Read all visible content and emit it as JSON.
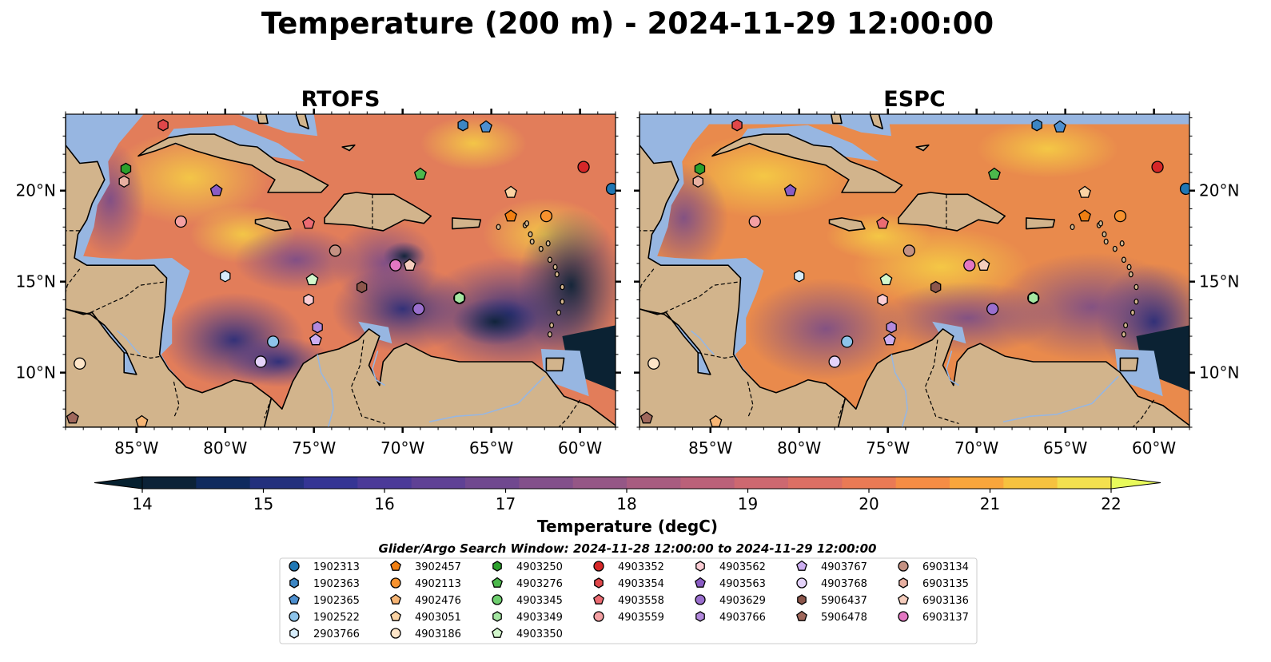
{
  "figure": {
    "title": "Temperature (200 m) - 2024-11-29 12:00:00",
    "search_window": "Glider/Argo Search Window: 2024-11-28 12:00:00 to 2024-11-29 12:00:00"
  },
  "chart_data": {
    "type": "heatmap",
    "panels": [
      {
        "title": "RTOFS"
      },
      {
        "title": "ESPC"
      }
    ],
    "x_ticks": [
      {
        "value": -85,
        "label": "85°W"
      },
      {
        "value": -80,
        "label": "80°W"
      },
      {
        "value": -75,
        "label": "75°W"
      },
      {
        "value": -70,
        "label": "70°W"
      },
      {
        "value": -65,
        "label": "65°W"
      },
      {
        "value": -60,
        "label": "60°W"
      }
    ],
    "y_ticks": [
      {
        "value": 20,
        "label": "20°N"
      },
      {
        "value": 15,
        "label": "15°N"
      },
      {
        "value": 10,
        "label": "10°N"
      }
    ],
    "xlim": [
      -89,
      -58
    ],
    "ylim": [
      7,
      24.2
    ],
    "colorbar": {
      "label": "Temperature (degC)",
      "min": 14,
      "max": 22,
      "step": 0.5,
      "extend": "both",
      "ticks": [
        {
          "value": 14,
          "label": "14"
        },
        {
          "value": 15,
          "label": "15"
        },
        {
          "value": 16,
          "label": "16"
        },
        {
          "value": 17,
          "label": "17"
        },
        {
          "value": 18,
          "label": "18"
        },
        {
          "value": 19,
          "label": "19"
        },
        {
          "value": 20,
          "label": "20"
        },
        {
          "value": 21,
          "label": "21"
        },
        {
          "value": 22,
          "label": "22"
        }
      ],
      "colors": [
        "#0c2237",
        "#0f2a5e",
        "#23307d",
        "#353594",
        "#4b3a98",
        "#5f4195",
        "#70488f",
        "#83508b",
        "#955786",
        "#a85c80",
        "#bb6179",
        "#cd6870",
        "#dc6f64",
        "#ea7a55",
        "#f58d45",
        "#f9a63c",
        "#f6c23f",
        "#f3e04f"
      ],
      "under_color": "#06202f",
      "over_color": "#e8fa5b"
    },
    "floats": [
      {
        "id": "1902313",
        "marker": "circle",
        "color": "#1f77b4",
        "lon": -58.2,
        "lat": 20.1
      },
      {
        "id": "1902363",
        "marker": "hexagon",
        "color": "#3c86c4",
        "lon": -66.6,
        "lat": 23.6
      },
      {
        "id": "1902365",
        "marker": "pentagon",
        "color": "#4d8fcf",
        "lon": -65.3,
        "lat": 23.5
      },
      {
        "id": "1902522",
        "marker": "circle",
        "color": "#8dc4ea",
        "lon": -77.3,
        "lat": 11.7
      },
      {
        "id": "2903766",
        "marker": "hexagon",
        "color": "#d6ecfa",
        "lon": -80.0,
        "lat": 15.3
      },
      {
        "id": "3902457",
        "marker": "pentagon",
        "color": "#f07f12",
        "lon": -63.9,
        "lat": 18.6
      },
      {
        "id": "4902113",
        "marker": "circle",
        "color": "#f7922e",
        "lon": -61.9,
        "lat": 18.6
      },
      {
        "id": "4902476",
        "marker": "pentagon",
        "color": "#f7b574",
        "lon": -84.7,
        "lat": 7.3
      },
      {
        "id": "4903051",
        "marker": "pentagon",
        "color": "#fbd3a4",
        "lon": -63.9,
        "lat": 19.9
      },
      {
        "id": "4903186",
        "marker": "circle",
        "color": "#fde5c8",
        "lon": -88.2,
        "lat": 10.5
      },
      {
        "id": "4903250",
        "marker": "hexagon",
        "color": "#2ca02c",
        "lon": -85.6,
        "lat": 21.2
      },
      {
        "id": "4903276",
        "marker": "pentagon",
        "color": "#4cb84c",
        "lon": -69.0,
        "lat": 20.9
      },
      {
        "id": "4903345",
        "marker": "circle",
        "color": "#6fcf6f",
        "lon": -66.8,
        "lat": 14.1
      },
      {
        "id": "4903349",
        "marker": "hexagon",
        "color": "#a4e6a1",
        "lon": -66.8,
        "lat": 14.1
      },
      {
        "id": "4903350",
        "marker": "pentagon",
        "color": "#d2f7cc",
        "lon": -75.1,
        "lat": 15.1
      },
      {
        "id": "4903352",
        "marker": "circle",
        "color": "#d62728",
        "lon": -59.8,
        "lat": 21.3
      },
      {
        "id": "4903354",
        "marker": "hexagon",
        "color": "#e0474a",
        "lon": -83.5,
        "lat": 23.6
      },
      {
        "id": "4903558",
        "marker": "pentagon",
        "color": "#ec6b72",
        "lon": -75.3,
        "lat": 18.2
      },
      {
        "id": "4903559",
        "marker": "circle",
        "color": "#f4a0a3",
        "lon": -82.5,
        "lat": 18.3
      },
      {
        "id": "4903562",
        "marker": "hexagon",
        "color": "#fbcdd4",
        "lon": -75.3,
        "lat": 14.0
      },
      {
        "id": "4903563",
        "marker": "pentagon",
        "color": "#8a5cc4",
        "lon": -80.5,
        "lat": 20.0
      },
      {
        "id": "4903629",
        "marker": "circle",
        "color": "#9a6fce",
        "lon": -69.1,
        "lat": 13.5
      },
      {
        "id": "4903766",
        "marker": "hexagon",
        "color": "#b389dd",
        "lon": -74.8,
        "lat": 12.5
      },
      {
        "id": "4903767",
        "marker": "pentagon",
        "color": "#ccaef0",
        "lon": -74.9,
        "lat": 11.8
      },
      {
        "id": "4903768",
        "marker": "circle",
        "color": "#e4d3fa",
        "lon": -78.0,
        "lat": 10.6
      },
      {
        "id": "5906437",
        "marker": "hexagon",
        "color": "#8c564b",
        "lon": -72.3,
        "lat": 14.7
      },
      {
        "id": "5906478",
        "marker": "pentagon",
        "color": "#a0685c",
        "lon": -88.6,
        "lat": 7.5
      },
      {
        "id": "6903134",
        "marker": "circle",
        "color": "#c49182",
        "lon": -73.8,
        "lat": 16.7
      },
      {
        "id": "6903135",
        "marker": "hexagon",
        "color": "#e8b0a1",
        "lon": -85.7,
        "lat": 20.5
      },
      {
        "id": "6903136",
        "marker": "pentagon",
        "color": "#f5cdbd",
        "lon": -69.6,
        "lat": 15.9
      },
      {
        "id": "6903137",
        "marker": "circle",
        "color": "#e377c2",
        "lon": -70.4,
        "lat": 15.9
      }
    ]
  },
  "colors": {
    "land": "#d2b48c",
    "shelf": "#97b6e1",
    "coast": "#000000",
    "border": "#000000",
    "river": "#97b6e1"
  }
}
